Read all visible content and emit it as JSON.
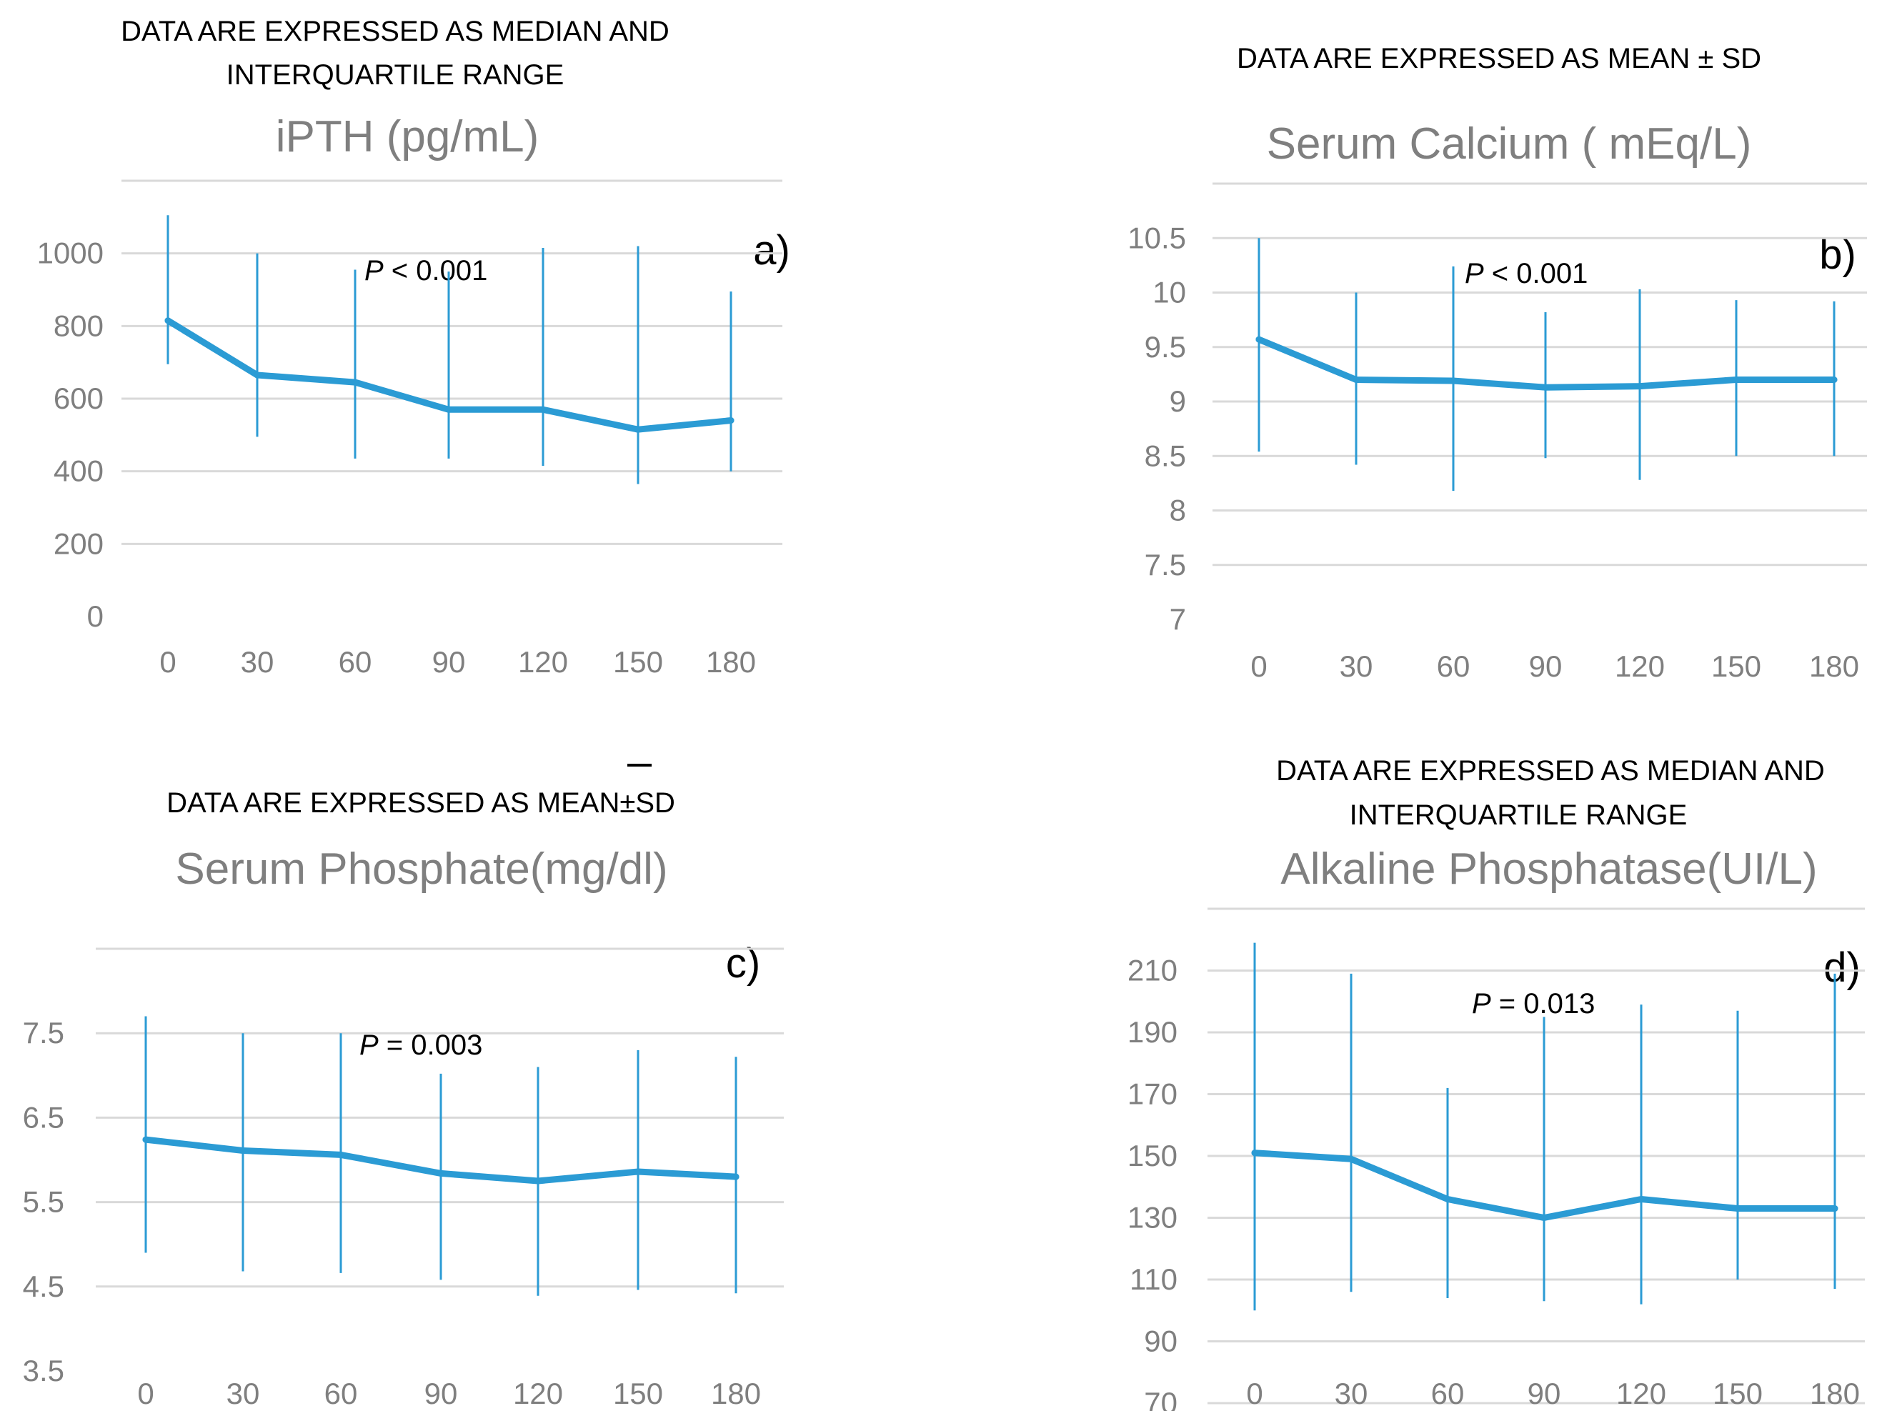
{
  "colors": {
    "line": "#2b9bd4",
    "grid": "#d9d9d9",
    "axis_text": "#7f7f7f",
    "note_text": "#000000"
  },
  "chart_data": [
    {
      "id": "a",
      "type": "line",
      "note_lines": [
        "DATA ARE EXPRESSED AS MEDIAN AND",
        "INTERQUARTILE RANGE"
      ],
      "title": "iPTH (pg/mL)",
      "panel_label": "a)",
      "p_italic": "P",
      "p_rest": " < 0.001",
      "categories": [
        "0",
        "30",
        "60",
        "90",
        "120",
        "150",
        "180"
      ],
      "values": [
        815,
        665,
        645,
        570,
        570,
        515,
        540
      ],
      "err_low": [
        695,
        495,
        435,
        435,
        415,
        365,
        400
      ],
      "err_high": [
        1105,
        1000,
        955,
        950,
        1015,
        1020,
        895
      ],
      "yticks": [
        "0",
        "200",
        "400",
        "600",
        "800",
        "1000"
      ],
      "ylim": [
        0,
        1200
      ]
    },
    {
      "id": "b",
      "type": "line",
      "note_lines": [
        "DATA ARE EXPRESSED AS MEAN ± SD"
      ],
      "title": "Serum Calcium ( mEq/L)",
      "panel_label": "b)",
      "p_italic": "P",
      "p_rest": " < 0.001",
      "categories": [
        "0",
        "30",
        "60",
        "90",
        "120",
        "150",
        "180"
      ],
      "values": [
        9.57,
        9.2,
        9.19,
        9.13,
        9.14,
        9.2,
        9.2
      ],
      "err_low": [
        8.54,
        8.42,
        8.18,
        8.48,
        8.28,
        8.5,
        8.5
      ],
      "err_high": [
        10.5,
        10.0,
        10.24,
        9.82,
        10.03,
        9.93,
        9.92
      ],
      "yticks": [
        "7",
        "7.5",
        "8",
        "8.5",
        "9",
        "9.5",
        "10",
        "10.5"
      ],
      "ylim": [
        7,
        11
      ]
    },
    {
      "id": "c",
      "type": "line",
      "note_lines": [
        "DATA ARE EXPRESSED AS MEAN±SD"
      ],
      "title": "Serum Phosphate(mg/dl)",
      "panel_label": "c)",
      "p_italic": "P",
      "p_rest": " = 0.003",
      "categories": [
        "0",
        "30",
        "60",
        "90",
        "120",
        "150",
        "180"
      ],
      "values": [
        6.24,
        6.11,
        6.06,
        5.84,
        5.75,
        5.86,
        5.8
      ],
      "err_low": [
        4.9,
        4.68,
        4.66,
        4.58,
        4.39,
        4.46,
        4.42
      ],
      "err_high": [
        7.7,
        7.5,
        7.5,
        7.02,
        7.1,
        7.3,
        7.22
      ],
      "yticks": [
        "3.5",
        "4.5",
        "5.5",
        "6.5",
        "7.5"
      ],
      "ylim": [
        3.5,
        8.5
      ]
    },
    {
      "id": "d",
      "type": "line",
      "note_lines": [
        "DATA ARE EXPRESSED AS MEDIAN AND",
        "INTERQUARTILE RANGE"
      ],
      "title": "Alkaline Phosphatase(UI/L)",
      "panel_label": "d)",
      "p_italic": "P",
      "p_rest": " = 0.013",
      "categories": [
        "0",
        "30",
        "60",
        "90",
        "120",
        "150",
        "180"
      ],
      "values": [
        151,
        149,
        136,
        130,
        136,
        133,
        133
      ],
      "err_low": [
        100,
        106,
        104,
        103,
        102,
        110,
        107
      ],
      "err_high": [
        219,
        209,
        172,
        195,
        199,
        197,
        209
      ],
      "yticks": [
        "70",
        "90",
        "110",
        "130",
        "150",
        "170",
        "190",
        "210"
      ],
      "ylim": [
        70,
        230
      ]
    }
  ]
}
